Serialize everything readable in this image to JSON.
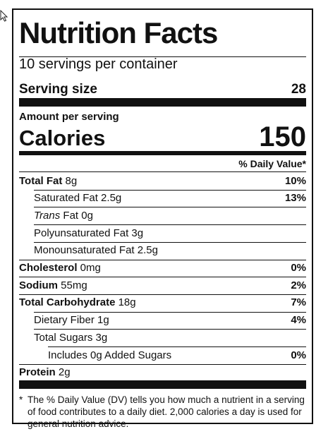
{
  "label": {
    "title": "Nutrition Facts",
    "servings_per_container": "10 servings per container",
    "serving_size_label": "Serving size",
    "serving_size_value": "28",
    "amount_per_serving": "Amount per serving",
    "calories_label": "Calories",
    "calories_value": "150",
    "daily_value_header": "% Daily Value*",
    "rows": [
      {
        "bold": "Total Fat",
        "rest": " 8g",
        "dv": "10%"
      },
      {
        "bold": "",
        "rest": "Saturated Fat 2.5g",
        "dv": "13%"
      },
      {
        "italic": "Trans",
        "rest": " Fat 0g",
        "dv": ""
      },
      {
        "bold": "",
        "rest": "Polyunsaturated Fat 3g",
        "dv": ""
      },
      {
        "bold": "",
        "rest": "Monounsaturated Fat 2.5g",
        "dv": ""
      },
      {
        "bold": "Cholesterol",
        "rest": " 0mg",
        "dv": "0%"
      },
      {
        "bold": "Sodium",
        "rest": " 55mg",
        "dv": "2%"
      },
      {
        "bold": "Total Carbohydrate",
        "rest": " 18g",
        "dv": "7%"
      },
      {
        "bold": "",
        "rest": "Dietary Fiber 1g",
        "dv": "4%"
      },
      {
        "bold": "",
        "rest": "Total Sugars 3g",
        "dv": ""
      },
      {
        "bold": "",
        "rest": "Includes 0g Added Sugars",
        "dv": "0%"
      },
      {
        "bold": "Protein",
        "rest": " 2g",
        "dv": ""
      }
    ],
    "footnote_star": "*",
    "footnote": "The % Daily Value (DV) tells you how much a nutrient in a serving of food contributes to a daily diet. 2,000 calories a day is used for general nutrition advice."
  },
  "icons": {
    "cursor": "mouse-pointer-icon"
  }
}
